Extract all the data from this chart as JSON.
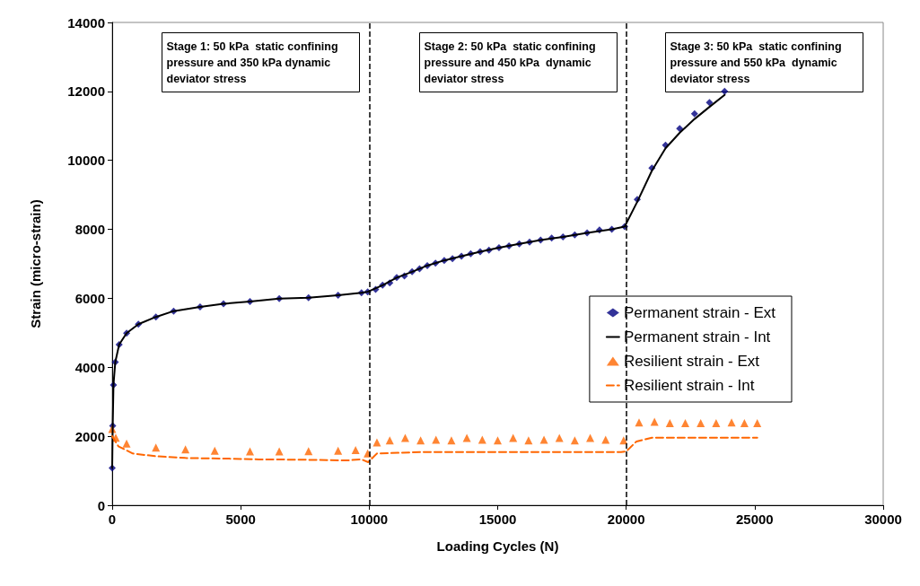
{
  "chart_data": {
    "type": "line",
    "xlabel": "Loading Cycles (N)",
    "ylabel": "Strain (micro-strain)",
    "xlim": [
      0,
      30000
    ],
    "xticks": [
      0,
      5000,
      10000,
      15000,
      20000,
      25000,
      30000
    ],
    "ylim": [
      0,
      14000
    ],
    "yticks": [
      0,
      2000,
      4000,
      6000,
      8000,
      10000,
      12000,
      14000
    ],
    "legend": "right",
    "grid": false,
    "series": [
      {
        "name": "Permanent strain - Ext",
        "type": "scatter",
        "marker": "diamond",
        "color": "#000080",
        "x": [
          0,
          20,
          50,
          120,
          270,
          560,
          1020,
          1700,
          2390,
          3420,
          4330,
          5360,
          6500,
          7640,
          8790,
          9700,
          9940,
          10250,
          10520,
          10800,
          11070,
          11370,
          11670,
          11960,
          12260,
          12580,
          12920,
          13240,
          13590,
          13950,
          14320,
          14660,
          15050,
          15440,
          15840,
          16240,
          16670,
          17100,
          17540,
          18000,
          18480,
          18960,
          19440,
          19940,
          20430,
          21000,
          21530,
          22080,
          22660,
          23240,
          23830
        ],
        "values": [
          1080,
          2300,
          3490,
          4150,
          4660,
          4990,
          5250,
          5460,
          5630,
          5750,
          5840,
          5910,
          5990,
          6020,
          6090,
          6160,
          6190,
          6260,
          6380,
          6450,
          6600,
          6650,
          6770,
          6860,
          6950,
          7020,
          7100,
          7150,
          7220,
          7290,
          7350,
          7400,
          7470,
          7520,
          7580,
          7630,
          7690,
          7750,
          7780,
          7840,
          7900,
          7980,
          8000,
          8080,
          8870,
          9780,
          10440,
          10920,
          11350,
          11680,
          12000
        ]
      },
      {
        "name": "Permanent strain - Int",
        "type": "line",
        "line_style": "solid",
        "color": "#000000",
        "x": [
          0,
          20,
          50,
          120,
          270,
          560,
          1020,
          1700,
          2390,
          3420,
          4330,
          5360,
          6500,
          7640,
          8790,
          9700,
          9940,
          10520,
          11070,
          11670,
          12260,
          12920,
          13590,
          14320,
          15050,
          15840,
          16670,
          17540,
          18480,
          19440,
          19940,
          20430,
          21000,
          21530,
          22080,
          22660,
          23240,
          23830
        ],
        "values": [
          1080,
          2300,
          3490,
          4150,
          4660,
          4990,
          5250,
          5460,
          5630,
          5750,
          5840,
          5910,
          5990,
          6020,
          6090,
          6160,
          6190,
          6380,
          6600,
          6770,
          6950,
          7100,
          7220,
          7350,
          7470,
          7580,
          7690,
          7780,
          7900,
          8000,
          8080,
          8800,
          9700,
          10350,
          10800,
          11200,
          11550,
          11900
        ]
      },
      {
        "name": "Resilient strain - Ext",
        "type": "scatter",
        "marker": "triangle",
        "color": "#ff6600",
        "x": [
          0,
          140,
          560,
          1700,
          2850,
          3990,
          5360,
          6500,
          7640,
          8790,
          9470,
          9940,
          10300,
          10800,
          11400,
          12000,
          12600,
          13200,
          13800,
          14400,
          15000,
          15600,
          16200,
          16800,
          17400,
          18000,
          18600,
          19200,
          19900,
          20500,
          21100,
          21700,
          22300,
          22900,
          23500,
          24100,
          24600,
          25100
        ],
        "values": [
          2210,
          1960,
          1790,
          1670,
          1620,
          1580,
          1560,
          1560,
          1570,
          1580,
          1600,
          1500,
          1820,
          1880,
          1950,
          1880,
          1900,
          1880,
          1950,
          1900,
          1880,
          1950,
          1880,
          1900,
          1950,
          1880,
          1950,
          1900,
          1880,
          2400,
          2420,
          2380,
          2380,
          2380,
          2380,
          2400,
          2380,
          2380
        ]
      },
      {
        "name": "Resilient strain - Int",
        "type": "line",
        "line_style": "dashed",
        "color": "#ff6600",
        "x": [
          0,
          240,
          800,
          1700,
          2850,
          4560,
          5700,
          7410,
          9130,
          9700,
          9960,
          10300,
          12000,
          14000,
          16000,
          18000,
          19800,
          20000,
          20400,
          21000,
          22000,
          23000,
          24000,
          25100
        ],
        "values": [
          2000,
          1710,
          1500,
          1420,
          1370,
          1350,
          1330,
          1320,
          1300,
          1330,
          1250,
          1500,
          1540,
          1540,
          1540,
          1540,
          1540,
          1560,
          1850,
          1960,
          1960,
          1960,
          1960,
          1960
        ]
      }
    ],
    "ref_lines": [
      {
        "axis": "x",
        "value": 10000,
        "line_style": "dashed",
        "color": "#000000"
      },
      {
        "axis": "x",
        "value": 20000,
        "line_style": "dashed",
        "color": "#000000"
      }
    ],
    "annotations": [
      "Stage 1: 50 kPa  static confining pressure and 350 kPa dynamic deviator stress",
      "Stage 2: 50 kPa  static confining pressure and 450 kPa  dynamic deviator stress",
      "Stage 3: 50 kPa  static confining pressure and 550 kPa  dynamic deviator stress"
    ]
  }
}
